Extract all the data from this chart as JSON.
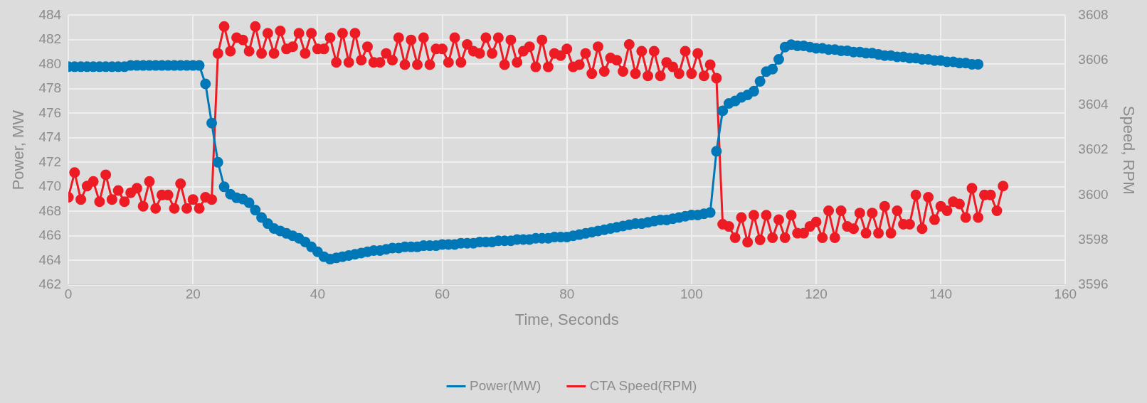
{
  "chart_data": {
    "type": "line",
    "xlabel": "Time, Seconds",
    "ylabel": "Power, MW",
    "y2label": "Speed, RPM",
    "x": [
      0,
      1,
      2,
      3,
      4,
      5,
      6,
      7,
      8,
      9,
      10,
      11,
      12,
      13,
      14,
      15,
      16,
      17,
      18,
      19,
      20,
      21,
      22,
      23,
      24,
      25,
      26,
      27,
      28,
      29,
      30,
      31,
      32,
      33,
      34,
      35,
      36,
      37,
      38,
      39,
      40,
      41,
      42,
      43,
      44,
      45,
      46,
      47,
      48,
      49,
      50,
      51,
      52,
      53,
      54,
      55,
      56,
      57,
      58,
      59,
      60,
      61,
      62,
      63,
      64,
      65,
      66,
      67,
      68,
      69,
      70,
      71,
      72,
      73,
      74,
      75,
      76,
      77,
      78,
      79,
      80,
      81,
      82,
      83,
      84,
      85,
      86,
      87,
      88,
      89,
      90,
      91,
      92,
      93,
      94,
      95,
      96,
      97,
      98,
      99,
      100,
      101,
      102,
      103,
      104,
      105,
      106,
      107,
      108,
      109,
      110,
      111,
      112,
      113,
      114,
      115,
      116,
      117,
      118,
      119,
      120,
      121,
      122,
      123,
      124,
      125,
      126,
      127,
      128,
      129,
      130,
      131,
      132,
      133,
      134,
      135,
      136,
      137,
      138,
      139,
      140,
      141,
      142,
      143,
      144,
      145,
      146,
      147,
      148,
      149,
      150
    ],
    "series": [
      {
        "name": "Power(MW)",
        "color": "#0078b8",
        "values": [
          479.8,
          479.8,
          479.8,
          479.8,
          479.8,
          479.8,
          479.8,
          479.8,
          479.8,
          479.8,
          479.9,
          479.9,
          479.9,
          479.9,
          479.9,
          479.9,
          479.9,
          479.9,
          479.9,
          479.9,
          479.9,
          479.9,
          478.4,
          475.2,
          472.0,
          470.0,
          469.4,
          469.1,
          469.0,
          468.7,
          468.1,
          467.5,
          467.0,
          466.6,
          466.4,
          466.2,
          466.0,
          465.8,
          465.5,
          465.1,
          464.7,
          464.3,
          464.1,
          464.2,
          464.3,
          464.4,
          464.5,
          464.6,
          464.7,
          464.8,
          464.8,
          464.9,
          465.0,
          465.0,
          465.1,
          465.1,
          465.1,
          465.2,
          465.2,
          465.2,
          465.3,
          465.3,
          465.3,
          465.4,
          465.4,
          465.4,
          465.5,
          465.5,
          465.5,
          465.6,
          465.6,
          465.6,
          465.7,
          465.7,
          465.7,
          465.8,
          465.8,
          465.8,
          465.9,
          465.9,
          465.9,
          466.0,
          466.1,
          466.2,
          466.3,
          466.4,
          466.5,
          466.6,
          466.7,
          466.8,
          466.9,
          467.0,
          467.0,
          467.1,
          467.2,
          467.3,
          467.3,
          467.4,
          467.5,
          467.6,
          467.7,
          467.7,
          467.8,
          467.9,
          472.9,
          476.2,
          476.8,
          477.0,
          477.3,
          477.5,
          477.8,
          478.6,
          479.4,
          479.6,
          480.4,
          481.4,
          481.6,
          481.5,
          481.5,
          481.4,
          481.3,
          481.3,
          481.2,
          481.2,
          481.1,
          481.1,
          481.0,
          481.0,
          480.9,
          480.9,
          480.8,
          480.7,
          480.7,
          480.6,
          480.6,
          480.5,
          480.5,
          480.4,
          480.4,
          480.3,
          480.3,
          480.2,
          480.2,
          480.1,
          480.1,
          480.0,
          480.0,
          null,
          null,
          null,
          null
        ]
      },
      {
        "name": "CTA Speed(RPM)",
        "color": "#ed1c24",
        "axis": "y2",
        "values": [
          3599.9,
          3601.0,
          3599.8,
          3600.4,
          3600.6,
          3599.7,
          3600.9,
          3599.8,
          3600.2,
          3599.7,
          3600.1,
          3600.3,
          3599.5,
          3600.6,
          3599.4,
          3600.0,
          3600.0,
          3599.4,
          3600.5,
          3599.4,
          3599.8,
          3599.4,
          3599.9,
          3599.8,
          3606.3,
          3607.5,
          3606.4,
          3607.0,
          3606.9,
          3606.4,
          3607.5,
          3606.3,
          3607.2,
          3606.3,
          3607.3,
          3606.5,
          3606.6,
          3607.2,
          3606.3,
          3607.2,
          3606.5,
          3606.5,
          3607.0,
          3605.9,
          3607.2,
          3605.9,
          3607.2,
          3606.0,
          3606.6,
          3605.9,
          3605.9,
          3606.3,
          3606.0,
          3607.0,
          3605.8,
          3606.9,
          3605.8,
          3607.0,
          3605.8,
          3606.5,
          3606.5,
          3605.9,
          3607.0,
          3605.9,
          3606.7,
          3606.4,
          3606.3,
          3607.0,
          3606.3,
          3607.0,
          3605.8,
          3606.9,
          3605.9,
          3606.4,
          3606.6,
          3605.7,
          3606.9,
          3605.7,
          3606.3,
          3606.2,
          3606.5,
          3605.7,
          3605.8,
          3606.3,
          3605.4,
          3606.6,
          3605.5,
          3606.1,
          3606.0,
          3605.5,
          3606.7,
          3605.4,
          3606.4,
          3605.3,
          3606.4,
          3605.3,
          3605.9,
          3605.7,
          3605.4,
          3606.4,
          3605.4,
          3606.3,
          3605.3,
          3605.8,
          3605.2,
          3598.7,
          3598.6,
          3598.1,
          3599.0,
          3597.9,
          3599.1,
          3598.0,
          3599.1,
          3598.1,
          3598.9,
          3598.1,
          3599.1,
          3598.3,
          3598.3,
          3598.6,
          3598.8,
          3598.1,
          3599.3,
          3598.1,
          3599.3,
          3598.6,
          3598.5,
          3599.2,
          3598.3,
          3599.2,
          3598.3,
          3599.5,
          3598.3,
          3599.3,
          3598.7,
          3598.7,
          3600.0,
          3598.5,
          3599.9,
          3598.9,
          3599.5,
          3599.3,
          3599.7,
          3599.6,
          3599.0,
          3600.3,
          3599.0,
          3600.0,
          3600.0,
          3599.3,
          3600.4
        ]
      }
    ],
    "xlim": [
      0,
      160
    ],
    "xticks": [
      0,
      20,
      40,
      60,
      80,
      100,
      120,
      140,
      160
    ],
    "ylim": [
      462,
      484
    ],
    "yticks": [
      462,
      464,
      466,
      468,
      470,
      472,
      474,
      476,
      478,
      480,
      482,
      484
    ],
    "y2lim": [
      3596,
      3608
    ],
    "y2ticks": [
      3596,
      3598,
      3600,
      3602,
      3604,
      3606,
      3608
    ],
    "grid": true,
    "legend": "bottom",
    "marker": "circle",
    "line_style": "solid"
  }
}
